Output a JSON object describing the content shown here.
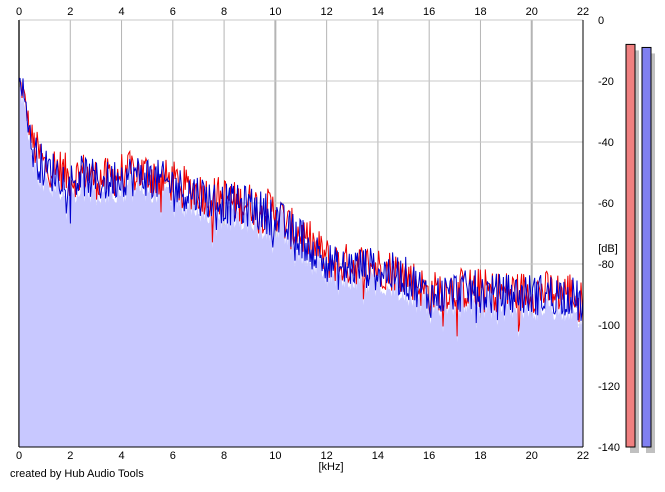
{
  "credit": "created by Hub Audio Tools",
  "colors": {
    "left_channel": "#ee0000",
    "right_channel": "#0000cc",
    "fill": "#c8c8ff",
    "grid": "#c8c8c8",
    "meter_left": "#f08080",
    "meter_right": "#8080f0"
  },
  "chart_data": {
    "type": "line",
    "xlabel": "[kHz]",
    "ylabel": "[dB]",
    "xlim": [
      0,
      22
    ],
    "ylim": [
      -140,
      0
    ],
    "x_ticks": [
      "0",
      "2",
      "4",
      "6",
      "8",
      "10",
      "12",
      "14",
      "16",
      "18",
      "20",
      "22"
    ],
    "y_ticks": [
      "0",
      "-20",
      "-40",
      "-60",
      "-80",
      "-100",
      "-120",
      "-140"
    ],
    "grid": true,
    "series": [
      {
        "color": "#ee0000",
        "x": [
          0,
          0.2,
          0.5,
          1,
          1.5,
          2,
          2.5,
          3,
          3.5,
          4,
          4.5,
          5,
          5.5,
          6,
          6.5,
          7,
          7.5,
          8,
          8.5,
          9,
          9.5,
          10,
          10.5,
          11,
          11.5,
          12,
          12.5,
          13,
          13.5,
          14,
          14.5,
          15,
          15.5,
          16,
          16.5,
          17,
          17.5,
          18,
          18.5,
          19,
          19.5,
          20,
          20.5,
          21,
          21.5,
          22
        ],
        "values": [
          -20,
          -25,
          -40,
          -48,
          -48,
          -52,
          -50,
          -52,
          -52,
          -50,
          -50,
          -50,
          -52,
          -53,
          -55,
          -56,
          -58,
          -58,
          -60,
          -60,
          -62,
          -62,
          -68,
          -70,
          -74,
          -78,
          -80,
          -80,
          -80,
          -81,
          -82,
          -83,
          -86,
          -90,
          -88,
          -88,
          -88,
          -88,
          -89,
          -89,
          -89,
          -89,
          -89,
          -89,
          -89,
          -93
        ]
      },
      {
        "color": "#0000cc",
        "x": [
          0,
          0.2,
          0.5,
          1,
          1.5,
          2,
          2.5,
          3,
          3.5,
          4,
          4.5,
          5,
          5.5,
          6,
          6.5,
          7,
          7.5,
          8,
          8.5,
          9,
          9.5,
          10,
          10.5,
          11,
          11.5,
          12,
          12.5,
          13,
          13.5,
          14,
          14.5,
          15,
          15.5,
          16,
          16.5,
          17,
          17.5,
          18,
          18.5,
          19,
          19.5,
          20,
          20.5,
          21,
          21.5,
          22
        ],
        "values": [
          -17,
          -24,
          -42,
          -49,
          -50,
          -53,
          -51,
          -53,
          -53,
          -51,
          -51,
          -51,
          -53,
          -54,
          -56,
          -57,
          -59,
          -60,
          -61,
          -61,
          -63,
          -64,
          -69,
          -71,
          -76,
          -79,
          -82,
          -81,
          -81,
          -82,
          -83,
          -84,
          -87,
          -91,
          -90,
          -89,
          -89,
          -89,
          -90,
          -90,
          -90,
          -90,
          -90,
          -90,
          -90,
          -94
        ]
      }
    ],
    "meters": [
      {
        "channel": "left",
        "value": -8
      },
      {
        "channel": "right",
        "value": -9
      }
    ]
  }
}
